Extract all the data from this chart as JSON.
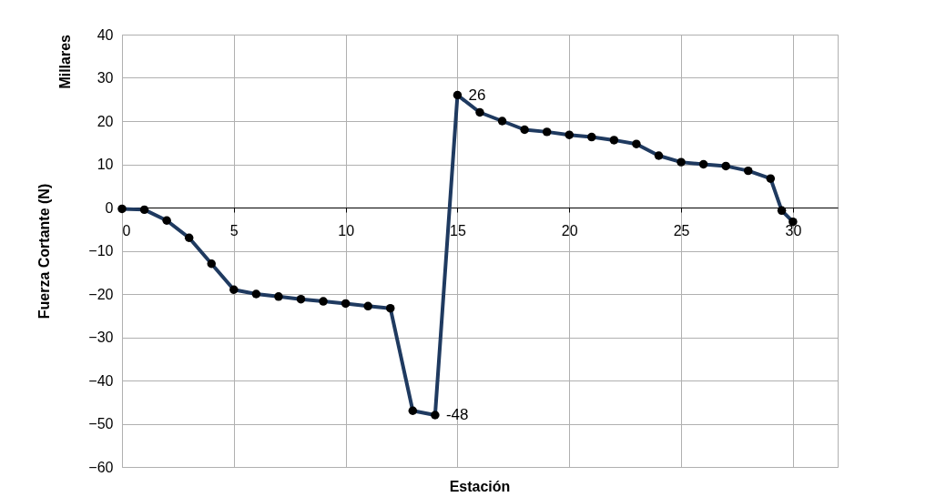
{
  "chart_data": {
    "type": "line",
    "xlabel": "Estación",
    "ylabel": "Fuerza Cortante (N)",
    "annotations": [
      "Millares"
    ],
    "x": [
      0,
      1,
      2,
      3,
      4,
      5,
      6,
      7,
      8,
      9,
      10,
      11,
      12,
      13,
      14,
      15,
      16,
      17,
      18,
      19,
      20,
      21,
      22,
      23,
      24,
      25,
      26,
      27,
      28,
      29,
      29.5,
      30
    ],
    "series": [
      {
        "color": "#1f3a60",
        "values": [
          -0.3,
          -0.5,
          -3,
          -7,
          -13,
          -19,
          -20,
          -20.6,
          -21.2,
          -21.7,
          -22.2,
          -22.8,
          -23.3,
          -47,
          -48,
          26,
          22,
          20,
          18,
          17.5,
          16.8,
          16.3,
          15.6,
          14.7,
          12,
          10.5,
          10,
          9.6,
          8.5,
          6.7,
          -0.7,
          -3.3
        ],
        "value_labels": [
          null,
          null,
          null,
          null,
          null,
          null,
          null,
          null,
          null,
          null,
          null,
          null,
          null,
          null,
          "-48",
          "26",
          null,
          null,
          null,
          null,
          null,
          null,
          null,
          null,
          null,
          null,
          null,
          null,
          null,
          null,
          null,
          null
        ]
      }
    ],
    "xlim": [
      0,
      32
    ],
    "xticks": [
      0,
      5,
      10,
      15,
      20,
      25,
      30
    ],
    "ylim": [
      -60,
      40
    ],
    "yticks": [
      -60,
      -50,
      -40,
      -30,
      -20,
      -10,
      0,
      10,
      20,
      30,
      40
    ],
    "grid": true,
    "marker": "circle",
    "line_style": "solid"
  }
}
